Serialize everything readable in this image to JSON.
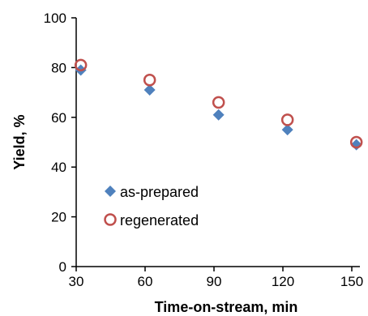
{
  "chart_data": {
    "type": "scatter",
    "title": "",
    "xlabel": "Time-on-stream, min",
    "ylabel": "Yield, %",
    "xlim": [
      30,
      150
    ],
    "ylim": [
      0,
      100
    ],
    "xticks": [
      "30",
      "60",
      "90",
      "120",
      "150"
    ],
    "yticks": [
      "0",
      "20",
      "40",
      "60",
      "80",
      "100"
    ],
    "grid": false,
    "legend": "lower-left",
    "series": [
      {
        "name": "as-prepared",
        "marker": "diamond",
        "color": "#4f81bd",
        "x": [
          32,
          62,
          92,
          122,
          152
        ],
        "y": [
          79,
          71,
          61,
          55,
          49
        ]
      },
      {
        "name": "regenerated",
        "marker": "open-circle",
        "color": "#c0504d",
        "x": [
          32,
          62,
          92,
          122,
          152
        ],
        "y": [
          81,
          75,
          66,
          59,
          50
        ]
      }
    ]
  }
}
